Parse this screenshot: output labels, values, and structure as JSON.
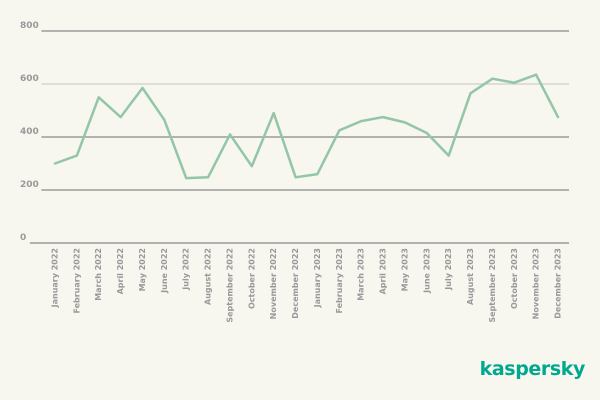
{
  "chart_data": {
    "type": "line",
    "title": "",
    "xlabel": "",
    "ylabel": "",
    "categories": [
      "January 2022",
      "February 2022",
      "March 2022",
      "April 2022",
      "May 2022",
      "June 2022",
      "July 2022",
      "August 2022",
      "September 2022",
      "October 2022",
      "November 2022",
      "December 2022",
      "January 2023",
      "February 2023",
      "March 2023",
      "April 2023",
      "May 2023",
      "June 2023",
      "July 2023",
      "August 2023",
      "September 2023",
      "October 2023",
      "November 2023",
      "December 2023"
    ],
    "values": [
      300,
      330,
      550,
      475,
      585,
      465,
      245,
      248,
      410,
      290,
      490,
      248,
      260,
      425,
      460,
      475,
      455,
      415,
      330,
      565,
      620,
      605,
      635,
      475
    ],
    "ylim": [
      0,
      800
    ],
    "yticks": [
      0,
      200,
      400,
      600,
      800
    ],
    "light_gridlines": [
      600
    ],
    "grid": "horizontal",
    "legend": "none",
    "line_color": "#93c6a6",
    "grid_color": "#9c9c9c",
    "grid_light_color": "#c4c4c0",
    "tick_label_color": "#999999",
    "background_color": "#f7f6ef"
  },
  "branding": {
    "logo_text": "kaspersky",
    "logo_color": "#00a88e"
  }
}
